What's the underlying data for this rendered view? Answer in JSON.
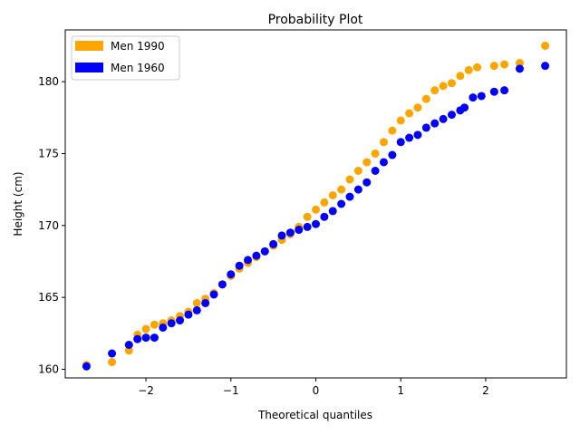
{
  "chart_data": {
    "type": "scatter",
    "title": "Probability Plot",
    "xlabel": "Theoretical quantiles",
    "ylabel": "Height (cm)",
    "xlim": [
      -2.95,
      2.95
    ],
    "ylim": [
      159.4,
      183.6
    ],
    "xticks": [
      -2,
      -1,
      0,
      1,
      2
    ],
    "yticks": [
      160,
      165,
      170,
      175,
      180
    ],
    "grid": false,
    "legend_position": "top-left",
    "series": [
      {
        "name": "Men 1990",
        "color": "#FFA500",
        "points": [
          [
            -2.7,
            160.3
          ],
          [
            -2.4,
            160.5
          ],
          [
            -2.2,
            161.3
          ],
          [
            -2.1,
            162.4
          ],
          [
            -2.0,
            162.8
          ],
          [
            -1.9,
            163.1
          ],
          [
            -1.8,
            163.2
          ],
          [
            -1.7,
            163.4
          ],
          [
            -1.6,
            163.7
          ],
          [
            -1.5,
            164.0
          ],
          [
            -1.4,
            164.6
          ],
          [
            -1.3,
            164.9
          ],
          [
            -1.2,
            165.3
          ],
          [
            -1.1,
            165.9
          ],
          [
            -1.0,
            166.5
          ],
          [
            -0.9,
            167.0
          ],
          [
            -0.8,
            167.4
          ],
          [
            -0.7,
            167.8
          ],
          [
            -0.6,
            168.2
          ],
          [
            -0.5,
            168.6
          ],
          [
            -0.4,
            169.0
          ],
          [
            -0.3,
            169.4
          ],
          [
            -0.2,
            169.9
          ],
          [
            -0.1,
            170.6
          ],
          [
            0.0,
            171.1
          ],
          [
            0.1,
            171.6
          ],
          [
            0.2,
            172.1
          ],
          [
            0.3,
            172.5
          ],
          [
            0.4,
            173.2
          ],
          [
            0.5,
            173.8
          ],
          [
            0.6,
            174.4
          ],
          [
            0.7,
            175.0
          ],
          [
            0.8,
            175.8
          ],
          [
            0.9,
            176.6
          ],
          [
            1.0,
            177.3
          ],
          [
            1.1,
            177.8
          ],
          [
            1.2,
            178.2
          ],
          [
            1.3,
            178.8
          ],
          [
            1.4,
            179.4
          ],
          [
            1.5,
            179.7
          ],
          [
            1.6,
            179.9
          ],
          [
            1.7,
            180.4
          ],
          [
            1.8,
            180.8
          ],
          [
            1.9,
            181.0
          ],
          [
            2.1,
            181.1
          ],
          [
            2.22,
            181.2
          ],
          [
            2.4,
            181.3
          ],
          [
            2.7,
            182.5
          ]
        ]
      },
      {
        "name": "Men 1960",
        "color": "#0000FF",
        "points": [
          [
            -2.7,
            160.2
          ],
          [
            -2.4,
            161.1
          ],
          [
            -2.2,
            161.7
          ],
          [
            -2.1,
            162.1
          ],
          [
            -2.0,
            162.2
          ],
          [
            -1.9,
            162.2
          ],
          [
            -1.8,
            162.9
          ],
          [
            -1.7,
            163.2
          ],
          [
            -1.6,
            163.4
          ],
          [
            -1.5,
            163.8
          ],
          [
            -1.4,
            164.1
          ],
          [
            -1.3,
            164.6
          ],
          [
            -1.2,
            165.2
          ],
          [
            -1.1,
            165.9
          ],
          [
            -1.0,
            166.6
          ],
          [
            -0.9,
            167.2
          ],
          [
            -0.8,
            167.6
          ],
          [
            -0.7,
            167.9
          ],
          [
            -0.6,
            168.2
          ],
          [
            -0.5,
            168.7
          ],
          [
            -0.4,
            169.3
          ],
          [
            -0.3,
            169.5
          ],
          [
            -0.2,
            169.7
          ],
          [
            -0.1,
            169.9
          ],
          [
            0.0,
            170.1
          ],
          [
            0.1,
            170.6
          ],
          [
            0.2,
            171.0
          ],
          [
            0.3,
            171.5
          ],
          [
            0.4,
            172.0
          ],
          [
            0.5,
            172.5
          ],
          [
            0.6,
            173.0
          ],
          [
            0.7,
            173.8
          ],
          [
            0.8,
            174.4
          ],
          [
            0.9,
            174.9
          ],
          [
            1.0,
            175.8
          ],
          [
            1.1,
            176.1
          ],
          [
            1.2,
            176.3
          ],
          [
            1.3,
            176.8
          ],
          [
            1.4,
            177.1
          ],
          [
            1.5,
            177.4
          ],
          [
            1.6,
            177.7
          ],
          [
            1.7,
            178.0
          ],
          [
            1.75,
            178.2
          ],
          [
            1.85,
            178.9
          ],
          [
            1.95,
            179.0
          ],
          [
            2.1,
            179.3
          ],
          [
            2.22,
            179.4
          ],
          [
            2.4,
            180.9
          ],
          [
            2.7,
            181.1
          ]
        ]
      }
    ]
  }
}
